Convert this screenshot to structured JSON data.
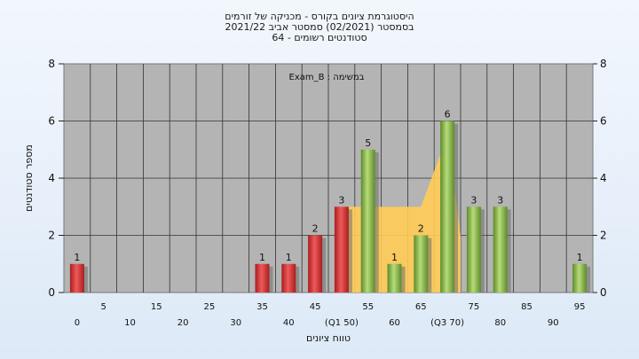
{
  "chart_data": {
    "type": "bar",
    "title_lines": [
      "היסטוגרמת ציונים בקורס - מכניקה של זורמים",
      "בסמסטר  (02/2021)  סמסטר אביב 2021/22",
      "סטודנטים רשומים - 64"
    ],
    "annotation": "במשימה : Exam_B",
    "xlabel": "טווח ציונים",
    "ylabel": "מספר סטודנטים",
    "ylim": [
      0,
      8
    ],
    "y_ticks": [
      0,
      2,
      4,
      6,
      8
    ],
    "x_upper_ticks": [
      "5",
      "15",
      "25",
      "35",
      "45",
      "55",
      "65",
      "75",
      "85",
      "95"
    ],
    "x_lower_ticks": [
      "0",
      "10",
      "20",
      "30",
      "40",
      "(Q1 50)",
      "60",
      "(Q3 70)",
      "80",
      "90"
    ],
    "categories": [
      0,
      5,
      10,
      15,
      20,
      25,
      30,
      35,
      40,
      45,
      50,
      55,
      60,
      65,
      70,
      75,
      80,
      85,
      90,
      95
    ],
    "values": [
      1,
      0,
      0,
      0,
      0,
      0,
      0,
      1,
      1,
      2,
      3,
      5,
      1,
      2,
      6,
      3,
      3,
      0,
      0,
      1
    ],
    "labels": [
      "1",
      "",
      "",
      "",
      "",
      "",
      "",
      "1",
      "1",
      "2",
      "3",
      "5",
      "1",
      "2",
      "6",
      "3",
      "3",
      "",
      "",
      "1"
    ],
    "bar_colors": [
      "red",
      "",
      "",
      "",
      "",
      "",
      "",
      "red",
      "red",
      "red",
      "red",
      "green",
      "green",
      "green",
      "green",
      "green",
      "green",
      "",
      "",
      "green"
    ],
    "area_series": {
      "x": [
        50,
        65,
        70,
        72.5
      ],
      "values": [
        3,
        3,
        5.5,
        2
      ]
    },
    "grid": true,
    "colors": {
      "plot_bg": "#b4b4b4",
      "red_bar": "#d93a3a",
      "green_bar": "#8fbd4e",
      "area": "#ffcc55"
    }
  }
}
